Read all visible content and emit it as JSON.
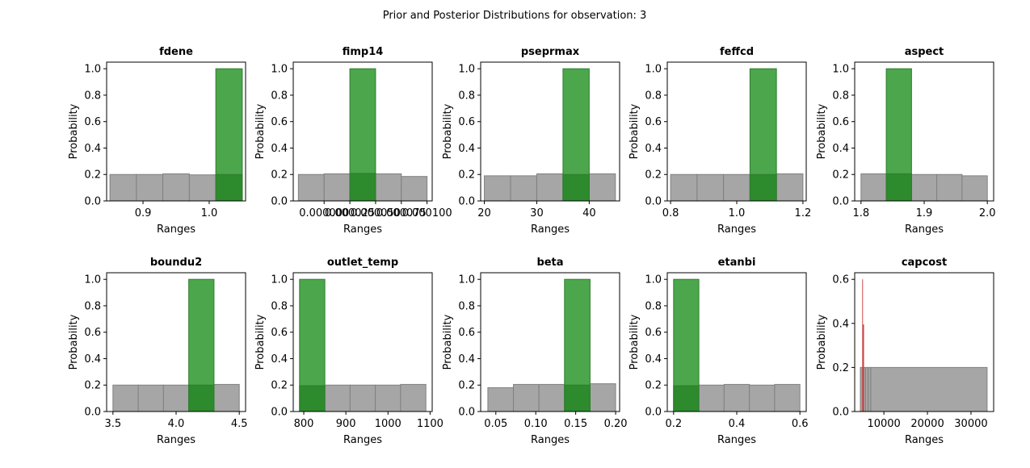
{
  "suptitle": "Prior and Posterior Distributions for observation: 3",
  "colors": {
    "prior_fill": "#a6a6a6",
    "prior_edge": "#808080",
    "posterior_fill": "#4ca64c",
    "posterior_overlap": "#2d8a2d",
    "posterior_edge": "#2e7d2e",
    "capcost_posterior": "#cc3b3b"
  },
  "chart_data": [
    {
      "type": "bar",
      "title": "fdene",
      "xlabel": "Ranges",
      "ylabel": "Probability",
      "xlim": [
        0.845,
        1.055
      ],
      "ylim": [
        0,
        1.05
      ],
      "xticks": [
        {
          "v": 0.9,
          "label": "0.9"
        },
        {
          "v": 1.0,
          "label": "1.0"
        }
      ],
      "yticks": [
        0,
        0.2,
        0.4,
        0.6,
        0.8,
        1.0
      ],
      "series": [
        {
          "role": "prior",
          "edges": [
            0.85,
            0.89,
            0.93,
            0.97,
            1.01,
            1.05
          ],
          "values": [
            0.2,
            0.2,
            0.205,
            0.197,
            0.2
          ]
        },
        {
          "role": "posterior",
          "edges": [
            1.01,
            1.05
          ],
          "values": [
            1.0
          ]
        }
      ]
    },
    {
      "type": "bar",
      "title": "fimp14",
      "xlabel": "Ranges",
      "ylabel": "Probability",
      "xlim": [
        -3e-05,
        0.000105
      ],
      "ylim": [
        0,
        1.05
      ],
      "xticks": [
        {
          "v": 0.0,
          "label": "0.000000"
        },
        {
          "v": 2.5e-05,
          "label": "0.000025"
        },
        {
          "v": 5e-05,
          "label": "0.000050"
        },
        {
          "v": 7.5e-05,
          "label": "0.000075"
        },
        {
          "v": 0.0001,
          "label": "0.000100"
        }
      ],
      "yticks": [
        0,
        0.2,
        0.4,
        0.6,
        0.8,
        1.0
      ],
      "series": [
        {
          "role": "prior",
          "edges": [
            -2.5e-05,
            0.0,
            2.5e-05,
            5e-05,
            7.5e-05,
            0.0001
          ],
          "values": [
            0.2,
            0.205,
            0.208,
            0.205,
            0.185
          ]
        },
        {
          "role": "posterior",
          "edges": [
            2.5e-05,
            5e-05
          ],
          "values": [
            1.0
          ]
        }
      ]
    },
    {
      "type": "bar",
      "title": "pseprmax",
      "xlabel": "Ranges",
      "ylabel": "Probability",
      "xlim": [
        19.3,
        45.8
      ],
      "ylim": [
        0,
        1.05
      ],
      "xticks": [
        {
          "v": 20,
          "label": "20"
        },
        {
          "v": 30,
          "label": "30"
        },
        {
          "v": 40,
          "label": "40"
        }
      ],
      "yticks": [
        0,
        0.2,
        0.4,
        0.6,
        0.8,
        1.0
      ],
      "series": [
        {
          "role": "prior",
          "edges": [
            20,
            25,
            30,
            35,
            40,
            45
          ],
          "values": [
            0.19,
            0.19,
            0.205,
            0.2,
            0.205
          ]
        },
        {
          "role": "posterior",
          "edges": [
            35,
            40
          ],
          "values": [
            1.0
          ]
        }
      ]
    },
    {
      "type": "bar",
      "title": "feffcd",
      "xlabel": "Ranges",
      "ylabel": "Probability",
      "xlim": [
        0.79,
        1.21
      ],
      "ylim": [
        0,
        1.05
      ],
      "xticks": [
        {
          "v": 0.8,
          "label": "0.8"
        },
        {
          "v": 1.0,
          "label": "1.0"
        },
        {
          "v": 1.2,
          "label": "1.2"
        }
      ],
      "yticks": [
        0,
        0.2,
        0.4,
        0.6,
        0.8,
        1.0
      ],
      "series": [
        {
          "role": "prior",
          "edges": [
            0.8,
            0.88,
            0.96,
            1.04,
            1.12,
            1.2
          ],
          "values": [
            0.2,
            0.2,
            0.2,
            0.2,
            0.205
          ]
        },
        {
          "role": "posterior",
          "edges": [
            1.04,
            1.12
          ],
          "values": [
            1.0
          ]
        }
      ]
    },
    {
      "type": "bar",
      "title": "aspect",
      "xlabel": "Ranges",
      "ylabel": "Probability",
      "xlim": [
        1.79,
        2.01
      ],
      "ylim": [
        0,
        1.05
      ],
      "xticks": [
        {
          "v": 1.8,
          "label": "1.8"
        },
        {
          "v": 1.9,
          "label": "1.9"
        },
        {
          "v": 2.0,
          "label": "2.0"
        }
      ],
      "yticks": [
        0,
        0.2,
        0.4,
        0.6,
        0.8,
        1.0
      ],
      "series": [
        {
          "role": "prior",
          "edges": [
            1.8,
            1.84,
            1.88,
            1.92,
            1.96,
            2.0
          ],
          "values": [
            0.205,
            0.205,
            0.2,
            0.2,
            0.19
          ]
        },
        {
          "role": "posterior",
          "edges": [
            1.84,
            1.88
          ],
          "values": [
            1.0
          ]
        }
      ]
    },
    {
      "type": "bar",
      "title": "boundu2",
      "xlabel": "Ranges",
      "ylabel": "Probability",
      "xlim": [
        3.45,
        4.55
      ],
      "ylim": [
        0,
        1.05
      ],
      "xticks": [
        {
          "v": 3.5,
          "label": "3.5"
        },
        {
          "v": 4.0,
          "label": "4.0"
        },
        {
          "v": 4.5,
          "label": "4.5"
        }
      ],
      "yticks": [
        0,
        0.2,
        0.4,
        0.6,
        0.8,
        1.0
      ],
      "series": [
        {
          "role": "prior",
          "edges": [
            3.5,
            3.7,
            3.9,
            4.1,
            4.3,
            4.5
          ],
          "values": [
            0.2,
            0.2,
            0.2,
            0.2,
            0.205
          ]
        },
        {
          "role": "posterior",
          "edges": [
            4.1,
            4.3
          ],
          "values": [
            1.0
          ]
        }
      ]
    },
    {
      "type": "bar",
      "title": "outlet_temp",
      "xlabel": "Ranges",
      "ylabel": "Probability",
      "xlim": [
        775,
        1105
      ],
      "ylim": [
        0,
        1.05
      ],
      "xticks": [
        {
          "v": 800,
          "label": "800"
        },
        {
          "v": 900,
          "label": "900"
        },
        {
          "v": 1000,
          "label": "1000"
        },
        {
          "v": 1100,
          "label": "1100"
        }
      ],
      "yticks": [
        0,
        0.2,
        0.4,
        0.6,
        0.8,
        1.0
      ],
      "series": [
        {
          "role": "prior",
          "edges": [
            790,
            850,
            910,
            970,
            1030,
            1090
          ],
          "values": [
            0.195,
            0.2,
            0.2,
            0.2,
            0.205
          ]
        },
        {
          "role": "posterior",
          "edges": [
            790,
            850
          ],
          "values": [
            1.0
          ]
        }
      ]
    },
    {
      "type": "bar",
      "title": "beta",
      "xlabel": "Ranges",
      "ylabel": "Probability",
      "xlim": [
        0.031,
        0.205
      ],
      "ylim": [
        0,
        1.05
      ],
      "xticks": [
        {
          "v": 0.05,
          "label": "0.05"
        },
        {
          "v": 0.1,
          "label": "0.10"
        },
        {
          "v": 0.15,
          "label": "0.15"
        },
        {
          "v": 0.2,
          "label": "0.20"
        }
      ],
      "yticks": [
        0,
        0.2,
        0.4,
        0.6,
        0.8,
        1.0
      ],
      "series": [
        {
          "role": "prior",
          "edges": [
            0.04,
            0.072,
            0.104,
            0.136,
            0.168,
            0.2
          ],
          "values": [
            0.18,
            0.205,
            0.205,
            0.2,
            0.21
          ]
        },
        {
          "role": "posterior",
          "edges": [
            0.136,
            0.168
          ],
          "values": [
            1.0
          ]
        }
      ]
    },
    {
      "type": "bar",
      "title": "etanbi",
      "xlabel": "Ranges",
      "ylabel": "Probability",
      "xlim": [
        0.18,
        0.62
      ],
      "ylim": [
        0,
        1.05
      ],
      "xticks": [
        {
          "v": 0.2,
          "label": "0.2"
        },
        {
          "v": 0.4,
          "label": "0.4"
        },
        {
          "v": 0.6,
          "label": "0.6"
        }
      ],
      "yticks": [
        0,
        0.2,
        0.4,
        0.6,
        0.8,
        1.0
      ],
      "series": [
        {
          "role": "prior",
          "edges": [
            0.2,
            0.28,
            0.36,
            0.44,
            0.52,
            0.6
          ],
          "values": [
            0.195,
            0.2,
            0.205,
            0.2,
            0.205
          ]
        },
        {
          "role": "posterior",
          "edges": [
            0.2,
            0.28
          ],
          "values": [
            1.0
          ]
        }
      ]
    },
    {
      "type": "bar",
      "title": "capcost",
      "xlabel": "Ranges",
      "ylabel": "Probability",
      "xlim": [
        3300,
        35200
      ],
      "ylim": [
        0,
        0.63
      ],
      "xticks": [
        {
          "v": 10000,
          "label": "10000"
        },
        {
          "v": 20000,
          "label": "20000"
        },
        {
          "v": 30000,
          "label": "30000"
        }
      ],
      "yticks": [
        0,
        0.2,
        0.4,
        0.6
      ],
      "series": [
        {
          "role": "prior",
          "edges": [
            4600,
            5200,
            5800,
            6400,
            7000,
            33700
          ],
          "values": [
            0.2,
            0.2,
            0.2,
            0.2,
            0.2
          ]
        },
        {
          "role": "posterior",
          "edges": [
            5020,
            5140,
            5260,
            5380
          ],
          "values": [
            0.6,
            0.395,
            0.395
          ]
        }
      ]
    }
  ]
}
